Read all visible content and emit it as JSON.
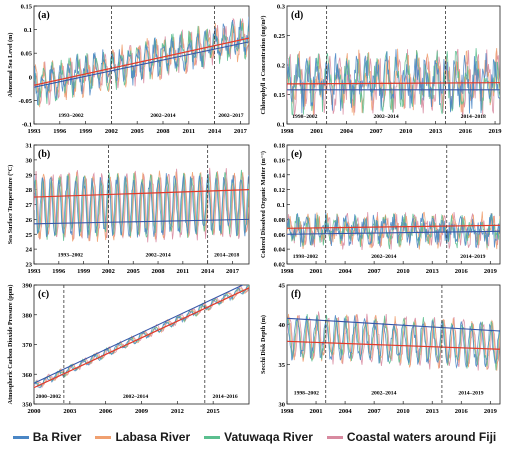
{
  "legend": {
    "ba": "Ba River",
    "labasa": "Labasa River",
    "vatuwaqa": "Vatuwaqa River",
    "coastal": "Coastal waters around Fiji"
  },
  "colors": {
    "ba": "#4a86c5",
    "labasa": "#f0a070",
    "vatuwaqa": "#5bbf8f",
    "coastal": "#d88aa0",
    "trend_main": "#e03a2a",
    "trend_alt": "#3555a8"
  },
  "chart_data": [
    {
      "id": "a",
      "type": "line",
      "panel_label": "(a)",
      "ylabel": "Abnormal Sea Level (m)",
      "x_start": 1993,
      "x_end": 2018,
      "xticks": [
        1993,
        1996,
        1999,
        2002,
        2005,
        2008,
        2011,
        2014,
        2017
      ],
      "ylim": [
        -0.1,
        0.15
      ],
      "yticks": [
        -0.1,
        -0.05,
        0,
        0.05,
        0.1,
        0.15
      ],
      "ytick_labels": [
        "-0.1",
        "-0.05",
        "0",
        "0.05",
        "0.1",
        "0.15"
      ],
      "separators": [
        2002,
        2014
      ],
      "period_labels": [
        {
          "text": "1993–2002",
          "x": 1997.3,
          "y": -0.085
        },
        {
          "text": "2002–2014",
          "x": 2008,
          "y": -0.085
        },
        {
          "text": "2002–2017",
          "x": 2015.9,
          "y": -0.085
        }
      ],
      "trend_main": {
        "from": [
          1993,
          -0.018
        ],
        "to": [
          2018,
          0.082
        ]
      },
      "trend_alt": {
        "from": [
          1993,
          -0.022
        ],
        "to": [
          2018,
          0.074
        ]
      },
      "series_model": {
        "base": -0.02,
        "slope": 0.0042,
        "amp": 0.03,
        "period": 1.0,
        "noise": 0.02
      }
    },
    {
      "id": "b",
      "type": "line",
      "panel_label": "(b)",
      "ylabel": "Sea Surface Temperature (°C)",
      "x_start": 1993,
      "x_end": 2019,
      "xticks": [
        1993,
        1996,
        1999,
        2002,
        2005,
        2008,
        2011,
        2014,
        2017
      ],
      "ylim": [
        23,
        31
      ],
      "yticks": [
        23,
        24,
        25,
        26,
        27,
        28,
        29,
        30,
        31
      ],
      "ytick_labels": [
        "23",
        "24",
        "25",
        "26",
        "27",
        "28",
        "29",
        "30",
        "31"
      ],
      "separators": [
        2002,
        2014
      ],
      "period_labels": [
        {
          "text": "1993–2002",
          "x": 1997.4,
          "y": 23.5
        },
        {
          "text": "2002–2014",
          "x": 2008,
          "y": 23.5
        },
        {
          "text": "2014–2018",
          "x": 2016.3,
          "y": 23.5
        }
      ],
      "trend_main": {
        "from": [
          1993,
          27.5
        ],
        "to": [
          2019,
          28.0
        ]
      },
      "trend_alt": {
        "from": [
          1993,
          25.7
        ],
        "to": [
          2019,
          26.0
        ]
      },
      "series_model": {
        "base": 26.8,
        "slope": 0.01,
        "amp": 2.0,
        "period": 1.0,
        "noise": 0.4
      }
    },
    {
      "id": "c",
      "type": "line",
      "panel_label": "(c)",
      "ylabel": "Atmospheric Carbon Dioxide Pressure (ppm)",
      "x_start": 2000,
      "x_end": 2018,
      "xticks": [
        2000,
        2003,
        2006,
        2009,
        2012,
        2015
      ],
      "ylim": [
        350,
        390
      ],
      "yticks": [
        350,
        360,
        370,
        380,
        390
      ],
      "ytick_labels": [
        "350",
        "360",
        "370",
        "380",
        "390"
      ],
      "separators": [
        2002.5,
        2014.3
      ],
      "period_labels": [
        {
          "text": "2000–2002",
          "x": 2001.2,
          "y": 352
        },
        {
          "text": "2002–2014",
          "x": 2008.5,
          "y": 352
        },
        {
          "text": "2014–2016",
          "x": 2016,
          "y": 352
        }
      ],
      "trend_main": {
        "from": [
          2000,
          355.5
        ],
        "to": [
          2018,
          389
        ]
      },
      "trend_alt": {
        "from": [
          2000,
          357
        ],
        "to": [
          2018,
          391
        ]
      },
      "series_model": {
        "base": 356,
        "slope": 1.85,
        "amp": 1.2,
        "period": 1.0,
        "noise": 0.5
      }
    },
    {
      "id": "d",
      "type": "line",
      "panel_label": "(d)",
      "ylabel": "Chlorophyll a Concentration (mg/m³)",
      "x_start": 1998,
      "x_end": 2019.5,
      "xticks": [
        1998,
        2001,
        2004,
        2007,
        2010,
        2013,
        2016,
        2019
      ],
      "ylim": [
        0.1,
        0.3
      ],
      "yticks": [
        0.1,
        0.15,
        0.2,
        0.25,
        0.3
      ],
      "ytick_labels": [
        "0.1",
        "0.15",
        "0.2",
        "0.25",
        "0.3"
      ],
      "separators": [
        2002,
        2014
      ],
      "period_labels": [
        {
          "text": "1998–2002",
          "x": 1999.8,
          "y": 0.11
        },
        {
          "text": "2002–2014",
          "x": 2008,
          "y": 0.11
        },
        {
          "text": "2014–2018",
          "x": 2016.8,
          "y": 0.11
        }
      ],
      "trend_main": {
        "from": [
          1998,
          0.168
        ],
        "to": [
          2019.5,
          0.17
        ]
      },
      "trend_alt": {
        "from": [
          1998,
          0.158
        ],
        "to": [
          2019.5,
          0.158
        ]
      },
      "series_model": {
        "base": 0.17,
        "slope": 0.0,
        "amp": 0.03,
        "period": 1.0,
        "noise": 0.03
      }
    },
    {
      "id": "e",
      "type": "line",
      "panel_label": "(e)",
      "ylabel": "Colored Dissolved Organic Matter (m⁻¹)",
      "x_start": 1998,
      "x_end": 2020,
      "xticks": [
        1998,
        2001,
        2004,
        2007,
        2010,
        2013,
        2016,
        2019
      ],
      "ylim": [
        0.02,
        0.18
      ],
      "yticks": [
        0.02,
        0.04,
        0.06,
        0.08,
        0.1,
        0.12,
        0.14,
        0.16,
        0.18
      ],
      "ytick_labels": [
        "0.02",
        "0.04",
        "0.06",
        "0.08",
        "0.1",
        "0.12",
        "0.14",
        "0.16",
        "0.18"
      ],
      "separators": [
        2002,
        2014.5
      ],
      "period_labels": [
        {
          "text": "1998–2002",
          "x": 1999.9,
          "y": 0.028
        },
        {
          "text": "2002–2014",
          "x": 2008,
          "y": 0.028
        },
        {
          "text": "2014–2019",
          "x": 2017.2,
          "y": 0.028
        }
      ],
      "trend_main": {
        "from": [
          1998,
          0.068
        ],
        "to": [
          2020,
          0.072
        ]
      },
      "trend_alt": {
        "from": [
          1998,
          0.06
        ],
        "to": [
          2020,
          0.064
        ]
      },
      "series_model": {
        "base": 0.065,
        "slope": 0.0,
        "amp": 0.012,
        "period": 1.0,
        "noise": 0.014
      }
    },
    {
      "id": "f",
      "type": "line",
      "panel_label": "(f)",
      "ylabel": "Secchi Disk Depth (m)",
      "x_start": 1998,
      "x_end": 2020,
      "xticks": [
        1998,
        2001,
        2004,
        2007,
        2010,
        2013,
        2016,
        2019
      ],
      "ylim": [
        30,
        45
      ],
      "yticks": [
        30,
        35,
        40,
        45
      ],
      "ytick_labels": [
        "30",
        "35",
        "40",
        "45"
      ],
      "separators": [
        2002,
        2014
      ],
      "period_labels": [
        {
          "text": "1998–2002",
          "x": 2000,
          "y": 31.2
        },
        {
          "text": "2002–2014",
          "x": 2008,
          "y": 31.2
        },
        {
          "text": "2014–2019",
          "x": 2017,
          "y": 31.2
        }
      ],
      "trend_main": {
        "from": [
          1998,
          37.9
        ],
        "to": [
          2020,
          36.9
        ]
      },
      "trend_alt": {
        "from": [
          1998,
          40.8
        ],
        "to": [
          2020,
          39.2
        ]
      },
      "series_model": {
        "base": 38.5,
        "slope": -0.05,
        "amp": 2.5,
        "period": 1.0,
        "noise": 0.8
      }
    }
  ]
}
